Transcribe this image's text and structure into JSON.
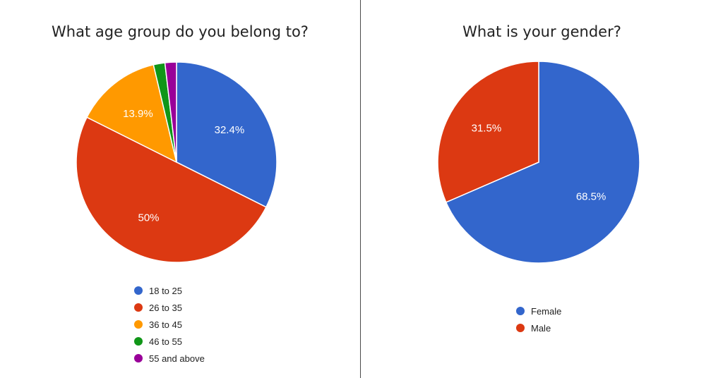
{
  "chart_data": [
    {
      "type": "pie",
      "title": "What age group do you belong to?",
      "categories": [
        "18 to 25",
        "26 to 35",
        "36 to 45",
        "46 to 55",
        "55 and above"
      ],
      "values": [
        32.4,
        50,
        13.9,
        1.85,
        1.85
      ],
      "data_labels": [
        "32.4%",
        "50%",
        "13.9%",
        "",
        ""
      ],
      "colors": [
        "#3366cc",
        "#dc3912",
        "#ff9900",
        "#109618",
        "#990099"
      ],
      "legend_position": "bottom"
    },
    {
      "type": "pie",
      "title": "What is your gender?",
      "categories": [
        "Female",
        "Male"
      ],
      "values": [
        68.5,
        31.5
      ],
      "data_labels": [
        "68.5%",
        "31.5%"
      ],
      "colors": [
        "#3366cc",
        "#dc3912"
      ],
      "legend_position": "bottom"
    }
  ]
}
